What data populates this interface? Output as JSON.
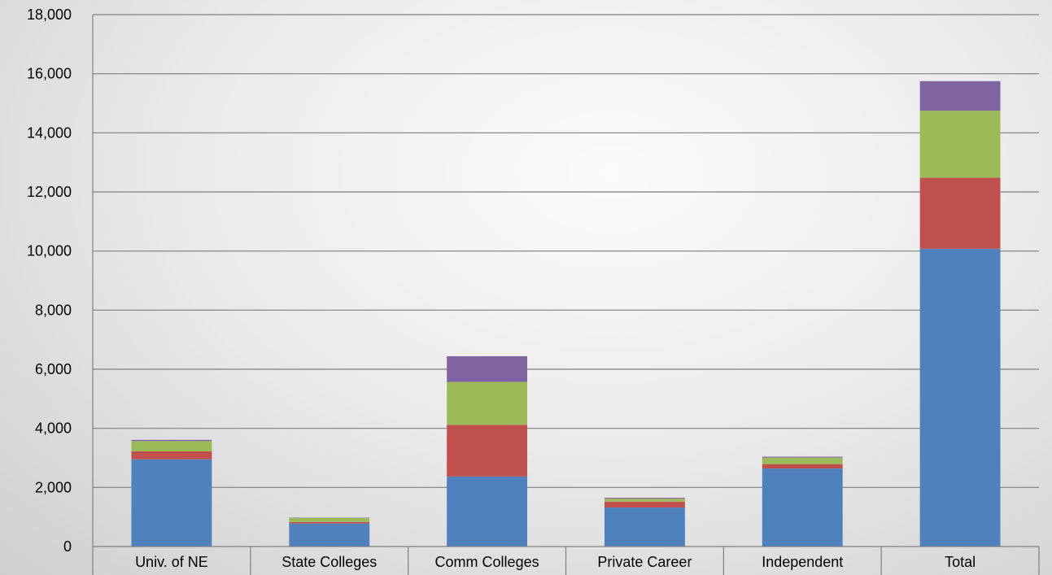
{
  "chart_data": {
    "type": "bar",
    "stacked": true,
    "title": "",
    "xlabel": "",
    "ylabel": "",
    "categories": [
      "Univ. of NE",
      "State Colleges",
      "Comm Colleges",
      "Private Career",
      "Independent",
      "Total"
    ],
    "series": [
      {
        "color": "#4f81bd",
        "values": [
          2950,
          780,
          2370,
          1320,
          2640,
          10080
        ]
      },
      {
        "color": "#c0504d",
        "values": [
          270,
          50,
          1750,
          200,
          150,
          2400
        ]
      },
      {
        "color": "#9bbb59",
        "values": [
          350,
          140,
          1450,
          100,
          220,
          2270
        ]
      },
      {
        "color": "#8064a2",
        "values": [
          40,
          10,
          870,
          30,
          30,
          1000
        ]
      }
    ],
    "ylim": [
      0,
      18000
    ],
    "yticks": [
      0,
      2000,
      4000,
      6000,
      8000,
      10000,
      12000,
      14000,
      16000,
      18000
    ],
    "ytick_labels": [
      "0",
      "2,000",
      "4,000",
      "6,000",
      "8,000",
      "10,000",
      "12,000",
      "14,000",
      "16,000",
      "18,000"
    ],
    "grid": true,
    "legend": "none",
    "colors": {
      "gridline": "#7f7f7f",
      "axis": "#7f7f7f"
    }
  }
}
